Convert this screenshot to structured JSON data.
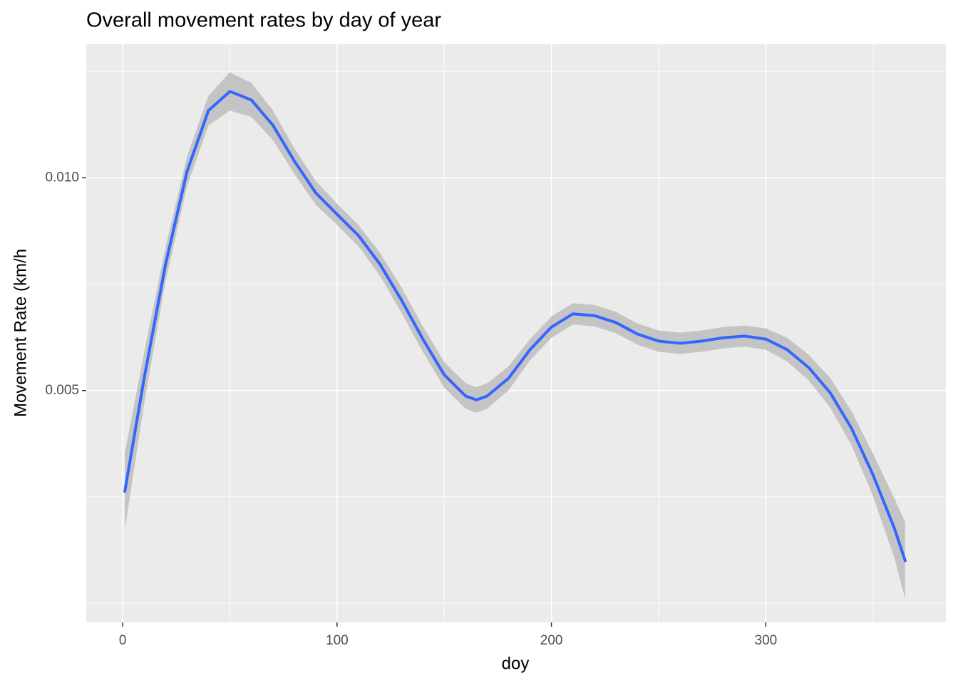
{
  "chart_data": {
    "type": "line",
    "title": "Overall movement rates by day of year",
    "x_label": "doy",
    "y_label": "Movement Rate (km/h",
    "x": [
      1,
      10,
      20,
      30,
      40,
      50,
      60,
      70,
      80,
      90,
      100,
      110,
      120,
      130,
      140,
      150,
      160,
      165,
      170,
      180,
      190,
      200,
      210,
      220,
      230,
      240,
      250,
      260,
      270,
      280,
      290,
      300,
      310,
      320,
      330,
      340,
      350,
      360,
      365
    ],
    "series": [
      {
        "color": "#3366ff",
        "band_color": "#c4c4c4",
        "values": [
          0.00263,
          0.00529,
          0.00797,
          0.01015,
          0.01158,
          0.01203,
          0.01183,
          0.01124,
          0.0104,
          0.00965,
          0.00914,
          0.00864,
          0.00797,
          0.00713,
          0.00621,
          0.00537,
          0.00487,
          0.00478,
          0.00487,
          0.00529,
          0.00596,
          0.00649,
          0.0068,
          0.00676,
          0.0066,
          0.00633,
          0.00616,
          0.00611,
          0.00616,
          0.00624,
          0.00628,
          0.00621,
          0.00596,
          0.00554,
          0.00495,
          0.00411,
          0.00302,
          0.00176,
          0.001
        ],
        "lower": [
          0.00173,
          0.00469,
          0.00757,
          0.0098,
          0.01123,
          0.01158,
          0.01143,
          0.01089,
          0.0101,
          0.00937,
          0.00889,
          0.00839,
          0.0077,
          0.00683,
          0.00591,
          0.00507,
          0.00457,
          0.00448,
          0.00457,
          0.00501,
          0.00571,
          0.00624,
          0.00655,
          0.00651,
          0.00635,
          0.00608,
          0.00591,
          0.00586,
          0.00591,
          0.00599,
          0.00603,
          0.00596,
          0.00568,
          0.00524,
          0.0046,
          0.00371,
          0.00252,
          0.00106,
          0.0001
        ],
        "upper": [
          0.00353,
          0.00589,
          0.00837,
          0.0105,
          0.01193,
          0.01248,
          0.01223,
          0.01159,
          0.0107,
          0.00993,
          0.00939,
          0.00889,
          0.00824,
          0.00743,
          0.00651,
          0.00567,
          0.00517,
          0.00508,
          0.00517,
          0.00557,
          0.00621,
          0.00674,
          0.00705,
          0.00701,
          0.00685,
          0.00658,
          0.00641,
          0.00636,
          0.00641,
          0.00649,
          0.00653,
          0.00646,
          0.00624,
          0.00584,
          0.0053,
          0.00451,
          0.00352,
          0.00246,
          0.0019
        ]
      }
    ],
    "xlim": [
      -17,
      384
    ],
    "ylim": [
      -0.00045,
      0.01314
    ],
    "xticks": [
      0,
      100,
      200,
      300
    ],
    "yticks": [
      0.005,
      {
        "value": 0.01,
        "label": "0.010"
      }
    ],
    "x_minor": [
      50,
      150,
      250,
      350
    ],
    "y_minor": [
      0,
      0.0025,
      0.0075,
      0.0125
    ],
    "grid": true
  }
}
